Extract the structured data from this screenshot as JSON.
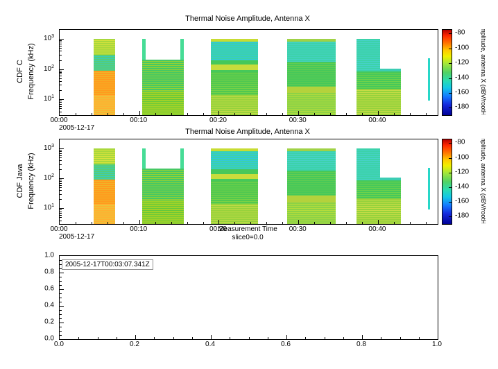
{
  "chart_data": [
    {
      "type": "heatmap",
      "panel": "top",
      "title": "Thermal Noise Amplitude, Antenna X",
      "row_label": "CDF C",
      "ylabel": "Frequency (kHz)",
      "yscale": "log",
      "ylim": [
        3,
        2000
      ],
      "yticks": [
        {
          "base": 10,
          "exp": 1
        },
        {
          "base": 10,
          "exp": 2
        },
        {
          "base": 10,
          "exp": 3
        }
      ],
      "x_start_date": "2005-12-17",
      "xlim_minutes": [
        0,
        47.5
      ],
      "xticks": [
        {
          "minutes": 0,
          "label": "00:00"
        },
        {
          "minutes": 10,
          "label": "00:10"
        },
        {
          "minutes": 20,
          "label": "00:20"
        },
        {
          "minutes": 30,
          "label": "00:30"
        },
        {
          "minutes": 40,
          "label": "00:40"
        }
      ],
      "colorbar": {
        "label": "amplitude, antenna X (dBV/rootHz)",
        "range": [
          -75,
          -190
        ],
        "ticks": [
          -80,
          -100,
          -120,
          -140,
          -160,
          -180
        ],
        "stops": [
          "#b40000 0%",
          "#ff2800 7%",
          "#ff7800 16%",
          "#ffc800 24%",
          "#f0f000 31%",
          "#a0e63c 40%",
          "#50d264 50%",
          "#28dcb4 60%",
          "#14c8e6 68%",
          "#1478ff 78%",
          "#1428dc 88%",
          "#000096 100%"
        ]
      },
      "patches": [
        {
          "t0": 4.3,
          "t1": 7.0,
          "f0": 300,
          "f1": 1000,
          "c": "#a8d83c",
          "s": "#d8e23c"
        },
        {
          "t0": 4.3,
          "t1": 7.0,
          "f0": 90,
          "f1": 300,
          "c": "#55cd78",
          "s": "#3ccdb4"
        },
        {
          "t0": 4.3,
          "t1": 7.0,
          "f0": 14,
          "f1": 90,
          "c": "#ff9b1e",
          "s": "#f0b428"
        },
        {
          "t0": 4.3,
          "t1": 7.0,
          "f0": 3,
          "f1": 14,
          "c": "#ffb030",
          "s": "#e6c83c"
        },
        {
          "t0": 10.4,
          "t1": 10.8,
          "f0": 3,
          "f1": 1000,
          "c": "#46dc96"
        },
        {
          "t0": 15.2,
          "t1": 15.6,
          "f0": 3,
          "f1": 1000,
          "c": "#46dc96"
        },
        {
          "t0": 10.4,
          "t1": 15.6,
          "f0": 18,
          "f1": 210,
          "c": "#46c864",
          "s": "#96d232"
        },
        {
          "t0": 10.4,
          "t1": 15.6,
          "f0": 3,
          "f1": 18,
          "c": "#a0d228",
          "s": "#64c83c"
        },
        {
          "t0": 19.0,
          "t1": 24.9,
          "f0": 200,
          "f1": 1000,
          "c": "#3cd2aa",
          "s": "#32c8dc"
        },
        {
          "t0": 19.0,
          "t1": 24.9,
          "f0": 800,
          "f1": 1000,
          "c": "#c8dc32"
        },
        {
          "t0": 19.0,
          "t1": 24.9,
          "f0": 80,
          "f1": 200,
          "c": "#46c85a"
        },
        {
          "t0": 19.0,
          "t1": 24.9,
          "f0": 95,
          "f1": 140,
          "c": "#c8dc3c"
        },
        {
          "t0": 19.0,
          "t1": 24.9,
          "f0": 14,
          "f1": 80,
          "c": "#50c850",
          "s": "#78d246"
        },
        {
          "t0": 19.0,
          "t1": 24.9,
          "f0": 3,
          "f1": 14,
          "c": "#96d23c",
          "s": "#c8dc46"
        },
        {
          "t0": 28.6,
          "t1": 34.7,
          "f0": 180,
          "f1": 1000,
          "c": "#3cd2aa",
          "s": "#46d2c8"
        },
        {
          "t0": 28.6,
          "t1": 34.7,
          "f0": 800,
          "f1": 1000,
          "c": "#a0d246"
        },
        {
          "t0": 28.6,
          "t1": 34.7,
          "f0": 26,
          "f1": 180,
          "c": "#46c85a",
          "s": "#64cd50"
        },
        {
          "t0": 28.6,
          "t1": 34.7,
          "f0": 16,
          "f1": 26,
          "c": "#b4d23c"
        },
        {
          "t0": 28.6,
          "t1": 34.7,
          "f0": 3,
          "f1": 16,
          "c": "#8cd246",
          "s": "#b4dc3c"
        },
        {
          "t0": 37.3,
          "t1": 40.3,
          "f0": 85,
          "f1": 1000,
          "c": "#3cd2aa",
          "s": "#46d2c8"
        },
        {
          "t0": 40.3,
          "t1": 42.9,
          "f0": 85,
          "f1": 105,
          "c": "#3ccdb4"
        },
        {
          "t0": 37.3,
          "t1": 42.9,
          "f0": 22,
          "f1": 85,
          "c": "#46c85a",
          "s": "#6ed24b"
        },
        {
          "t0": 37.3,
          "t1": 42.9,
          "f0": 3,
          "f1": 22,
          "c": "#96d23c",
          "s": "#c8dc46"
        },
        {
          "t0": 46.3,
          "t1": 46.55,
          "f0": 9,
          "f1": 230,
          "c": "#28d7c8"
        }
      ]
    },
    {
      "type": "heatmap",
      "panel": "middle",
      "title": "Thermal Noise Amplitude, Antenna X",
      "row_label": "CDF Java",
      "ylabel": "Frequency (kHz)",
      "xlabel": "Measurement Time",
      "slice_annotation": "slice0=0.0",
      "yscale": "log",
      "ylim": [
        3,
        2000
      ],
      "yticks": [
        {
          "base": 10,
          "exp": 1
        },
        {
          "base": 10,
          "exp": 2
        },
        {
          "base": 10,
          "exp": 3
        }
      ],
      "x_start_date": "2005-12-17",
      "xlim_minutes": [
        0,
        47.5
      ],
      "xticks": [
        {
          "minutes": 0,
          "label": "00:00"
        },
        {
          "minutes": 10,
          "label": "00:10"
        },
        {
          "minutes": 20,
          "label": "00:20"
        },
        {
          "minutes": 30,
          "label": "00:30"
        },
        {
          "minutes": 40,
          "label": "00:40"
        }
      ],
      "colorbar": {
        "label": "amplitude, antenna X (dBV/rootHz)",
        "range": [
          -75,
          -190
        ],
        "ticks": [
          -80,
          -100,
          -120,
          -140,
          -160,
          -180
        ],
        "stops": [
          "#b40000 0%",
          "#ff2800 7%",
          "#ff7800 16%",
          "#ffc800 24%",
          "#f0f000 31%",
          "#a0e63c 40%",
          "#50d264 50%",
          "#28dcb4 60%",
          "#14c8e6 68%",
          "#1478ff 78%",
          "#1428dc 88%",
          "#000096 100%"
        ]
      },
      "patches": "same_as_panel_0"
    },
    {
      "type": "empty-axes",
      "panel": "bottom",
      "xlim": [
        0,
        1
      ],
      "ylim": [
        0,
        1
      ],
      "xticks": [
        0,
        0.2,
        0.4,
        0.6,
        0.8,
        1.0
      ],
      "yticks": [
        0,
        0.2,
        0.4,
        0.6,
        0.8,
        1.0
      ],
      "annotation": "2005-12-17T00:03:07.341Z",
      "series": []
    }
  ]
}
